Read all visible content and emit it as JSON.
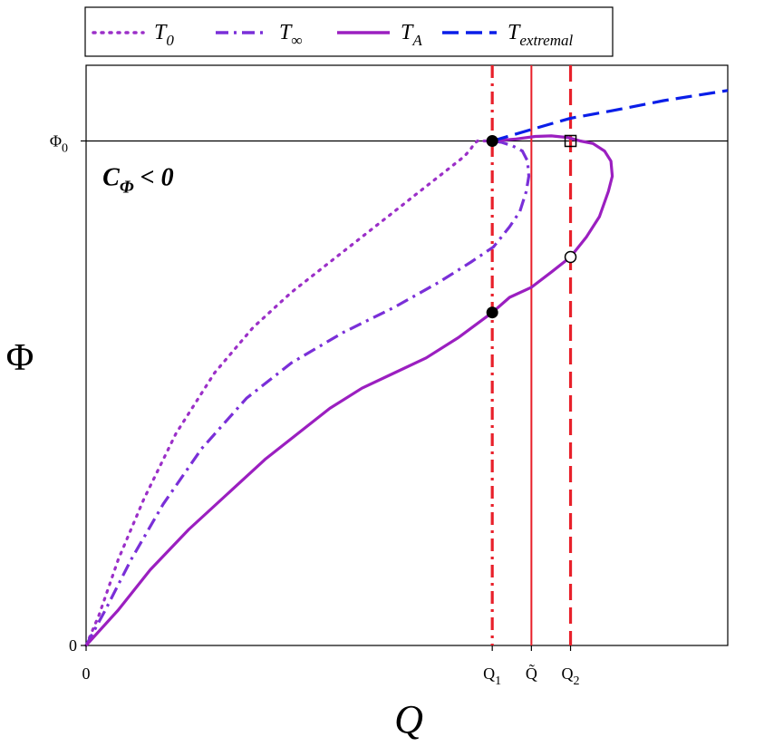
{
  "chart_data": {
    "type": "line",
    "title": "",
    "xlabel": "Q",
    "ylabel": "Φ",
    "xlim": [
      0,
      1
    ],
    "ylim": [
      0,
      1.15
    ],
    "grid": false,
    "legend_position": "top",
    "x_ticks": [
      {
        "value": 0,
        "label": "0"
      },
      {
        "value": 0.633,
        "label": "Q",
        "sub": "1"
      },
      {
        "value": 0.694,
        "label": "Q̃"
      },
      {
        "value": 0.755,
        "label": "Q",
        "sub": "2"
      }
    ],
    "y_ticks": [
      {
        "value": 0,
        "label": "0"
      },
      {
        "value": 1,
        "label": "Φ",
        "sub": "0"
      }
    ],
    "annotation": {
      "main": "C",
      "sub": "Φ",
      "rest": " < 0",
      "x": 0.02,
      "y": 0.93
    },
    "reference_lines": {
      "horizontal": [
        {
          "y": 1,
          "color": "#000000",
          "style": "solid"
        }
      ],
      "vertical": [
        {
          "x": 0.633,
          "color": "#e8202a",
          "style": "dashdot"
        },
        {
          "x": 0.694,
          "color": "#e8202a",
          "style": "solid"
        },
        {
          "x": 0.755,
          "color": "#e8202a",
          "style": "dashed"
        }
      ]
    },
    "series": [
      {
        "name": "T",
        "sub": "0",
        "color": "#9b2fc8",
        "style": "dotted",
        "x": [
          0,
          0.02,
          0.05,
          0.09,
          0.14,
          0.2,
          0.26,
          0.32,
          0.37,
          0.42,
          0.47,
          0.52,
          0.56,
          0.59,
          0.6,
          0.605,
          0.61,
          0.633
        ],
        "y": [
          0,
          0.06,
          0.17,
          0.29,
          0.42,
          0.54,
          0.63,
          0.7,
          0.75,
          0.8,
          0.85,
          0.9,
          0.94,
          0.97,
          0.985,
          0.995,
          1.0,
          1.0
        ]
      },
      {
        "name": "T",
        "sub": "∞",
        "color": "#7a2fd8",
        "style": "dashdot",
        "x": [
          0,
          0.03,
          0.07,
          0.12,
          0.18,
          0.25,
          0.32,
          0.4,
          0.48,
          0.55,
          0.6,
          0.635,
          0.66,
          0.676,
          0.686,
          0.69,
          0.688,
          0.68,
          0.665,
          0.648,
          0.633
        ],
        "y": [
          0,
          0.07,
          0.17,
          0.28,
          0.39,
          0.49,
          0.56,
          0.62,
          0.67,
          0.72,
          0.76,
          0.79,
          0.83,
          0.86,
          0.9,
          0.93,
          0.96,
          0.98,
          0.99,
          0.997,
          1.0
        ]
      },
      {
        "name": "T",
        "sub": "A",
        "color": "#9b1fc0",
        "style": "solid",
        "x": [
          0,
          0.05,
          0.1,
          0.16,
          0.22,
          0.28,
          0.33,
          0.38,
          0.43,
          0.48,
          0.53,
          0.58,
          0.633,
          0.66,
          0.694,
          0.725,
          0.755,
          0.78,
          0.8,
          0.814,
          0.82,
          0.818,
          0.808,
          0.79,
          0.77,
          0.75,
          0.725,
          0.7,
          0.67,
          0.633
        ],
        "y": [
          0,
          0.07,
          0.15,
          0.23,
          0.3,
          0.37,
          0.42,
          0.47,
          0.51,
          0.54,
          0.57,
          0.61,
          0.66,
          0.69,
          0.71,
          0.74,
          0.77,
          0.81,
          0.85,
          0.9,
          0.93,
          0.96,
          0.98,
          0.995,
          1.0,
          1.007,
          1.01,
          1.009,
          1.004,
          1.0
        ]
      },
      {
        "name": "T",
        "sub": "extremal",
        "color": "#0a1ee8",
        "style": "dashed",
        "x": [
          0.633,
          0.7,
          0.755,
          0.82,
          0.9,
          1.0
        ],
        "y": [
          1.0,
          1.025,
          1.045,
          1.06,
          1.08,
          1.1
        ]
      }
    ],
    "markers": [
      {
        "x": 0.633,
        "y": 1.0,
        "shape": "filled-circle"
      },
      {
        "x": 0.633,
        "y": 0.66,
        "shape": "filled-circle"
      },
      {
        "x": 0.755,
        "y": 0.77,
        "shape": "open-circle"
      },
      {
        "x": 0.755,
        "y": 1.0,
        "shape": "open-square"
      }
    ]
  }
}
